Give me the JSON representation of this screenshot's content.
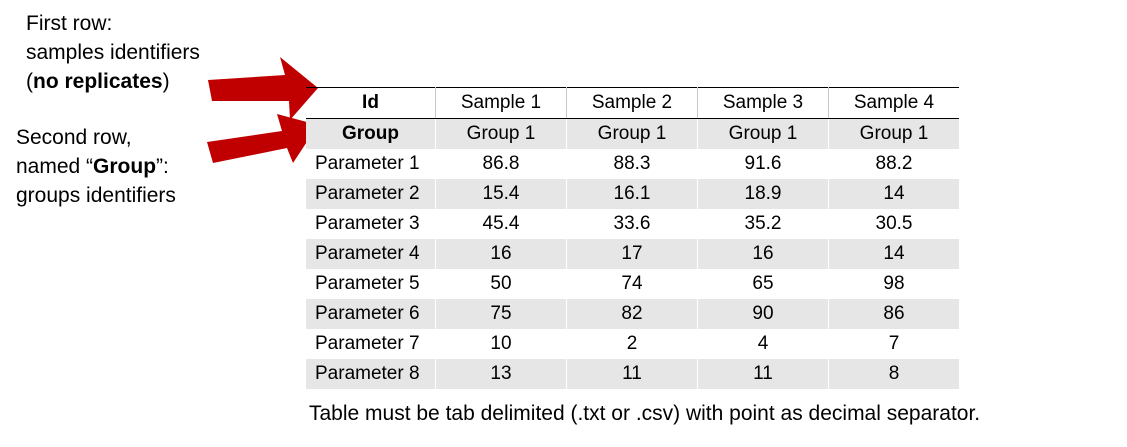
{
  "notes": {
    "first_row": {
      "line1": "First row:",
      "line2": "samples identifiers",
      "line3_open": "(",
      "line3_bold": "no replicates",
      "line3_close": ")"
    },
    "second_row": {
      "line1": "Second row,",
      "line2_pre": "named “",
      "line2_bold": "Group",
      "line2_post": "”:",
      "line3": "groups identifiers"
    }
  },
  "table": {
    "id_row": [
      "Id",
      "Sample 1",
      "Sample 2",
      "Sample 3",
      "Sample 4"
    ],
    "group_row": [
      "Group",
      "Group 1",
      "Group 1",
      "Group 1",
      "Group 1"
    ],
    "rows": [
      [
        "Parameter 1",
        "86.8",
        "88.3",
        "91.6",
        "88.2"
      ],
      [
        "Parameter 2",
        "15.4",
        "16.1",
        "18.9",
        "14"
      ],
      [
        "Parameter 3",
        "45.4",
        "33.6",
        "35.2",
        "30.5"
      ],
      [
        "Parameter 4",
        "16",
        "17",
        "16",
        "14"
      ],
      [
        "Parameter 5",
        "50",
        "74",
        "65",
        "98"
      ],
      [
        "Parameter 6",
        "75",
        "82",
        "90",
        "86"
      ],
      [
        "Parameter 7",
        "10",
        "2",
        "4",
        "7"
      ],
      [
        "Parameter 8",
        "13",
        "11",
        "11",
        "8"
      ]
    ]
  },
  "footnote": "Table must be tab delimited (.txt or .csv) with point as decimal separator.",
  "colors": {
    "arrow": "#c00000",
    "shade": "#e6e6e6"
  },
  "icons": [
    "arrow-right-icon"
  ]
}
